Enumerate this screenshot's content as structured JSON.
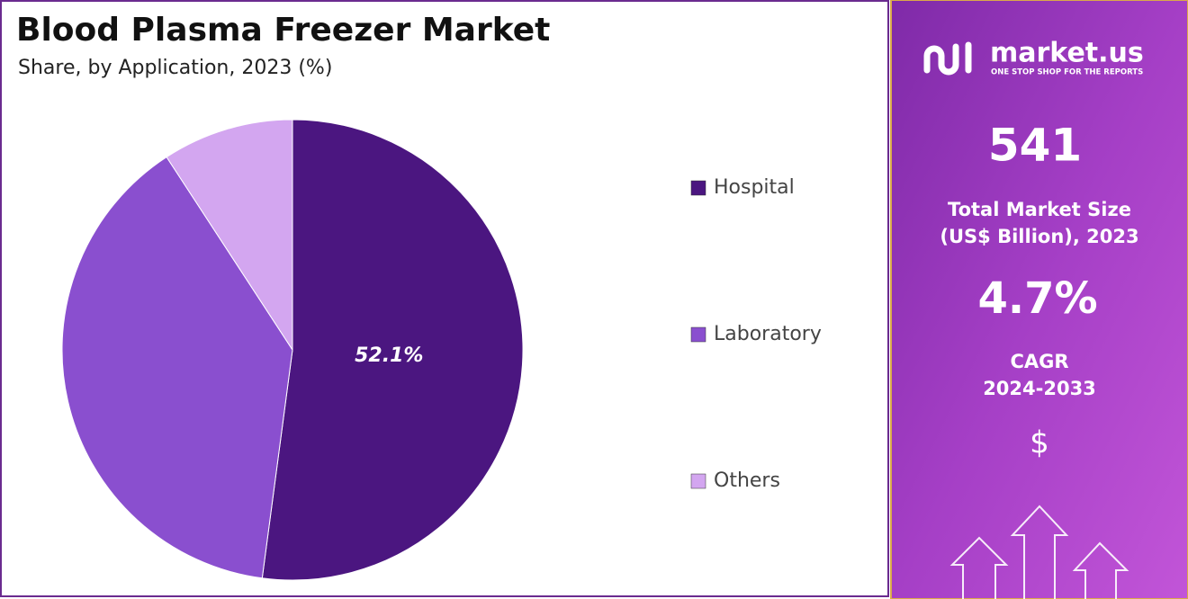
{
  "chart_data": {
    "type": "pie",
    "title": "Blood Plasma Freezer Market",
    "subtitle": "Share, by Application, 2023 (%)",
    "categories": [
      "Hospital",
      "Laboratory",
      "Others"
    ],
    "values": [
      52.1,
      38.7,
      9.2
    ],
    "value_labels": [
      "52.1%",
      null,
      null
    ],
    "colors": [
      "#4b1680",
      "#8a4fcf",
      "#d3a6f0"
    ],
    "legend": "right"
  },
  "panel": {
    "brand": "market.us",
    "tagline": "ONE STOP SHOP FOR THE REPORTS",
    "market_size": "541",
    "market_size_label": [
      "Total Market Size",
      "(US$ Billion), 2023"
    ],
    "cagr": "4.7%",
    "cagr_label": [
      "CAGR",
      "2024-2033"
    ],
    "currency": "$"
  }
}
